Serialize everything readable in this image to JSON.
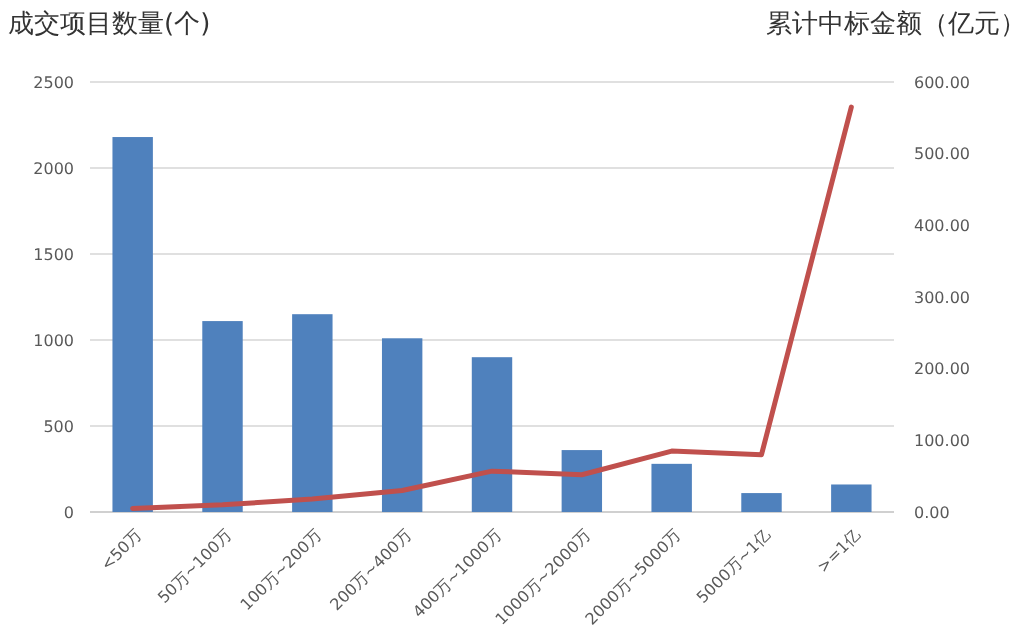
{
  "chart_data": {
    "type": "bar",
    "ylabel": "成交项目数量(个)",
    "y2label": "累计中标金额（亿元）",
    "categories": [
      "<50万",
      "50万~100万",
      "100万~200万",
      "200万~400万",
      "400万~1000万",
      "1000万~2000万",
      "2000万~5000万",
      "5000万~1亿",
      ">=1亿"
    ],
    "series": [
      {
        "color": "#4f81bd",
        "values": [
          2180,
          1110,
          1150,
          1010,
          900,
          360,
          280,
          110,
          160
        ]
      },
      {
        "type": "line",
        "axis": "y2",
        "color": "#c0504d",
        "values": [
          5,
          10,
          18,
          30,
          57,
          52,
          85,
          80,
          565
        ]
      }
    ],
    "ylim": [
      0,
      2500
    ],
    "yticks": [
      0,
      500,
      1000,
      1500,
      2000,
      2500
    ],
    "y2lim": [
      0,
      600
    ],
    "y2ticks": [
      {
        "value": 0,
        "label": "0.00"
      },
      {
        "value": 100,
        "label": "100.00"
      },
      {
        "value": 200,
        "label": "200.00"
      },
      {
        "value": 300,
        "label": "300.00"
      },
      {
        "value": 400,
        "label": "400.00"
      },
      {
        "value": 500,
        "label": "500.00"
      },
      {
        "value": 600,
        "label": "600.00"
      }
    ],
    "grid": "y"
  }
}
